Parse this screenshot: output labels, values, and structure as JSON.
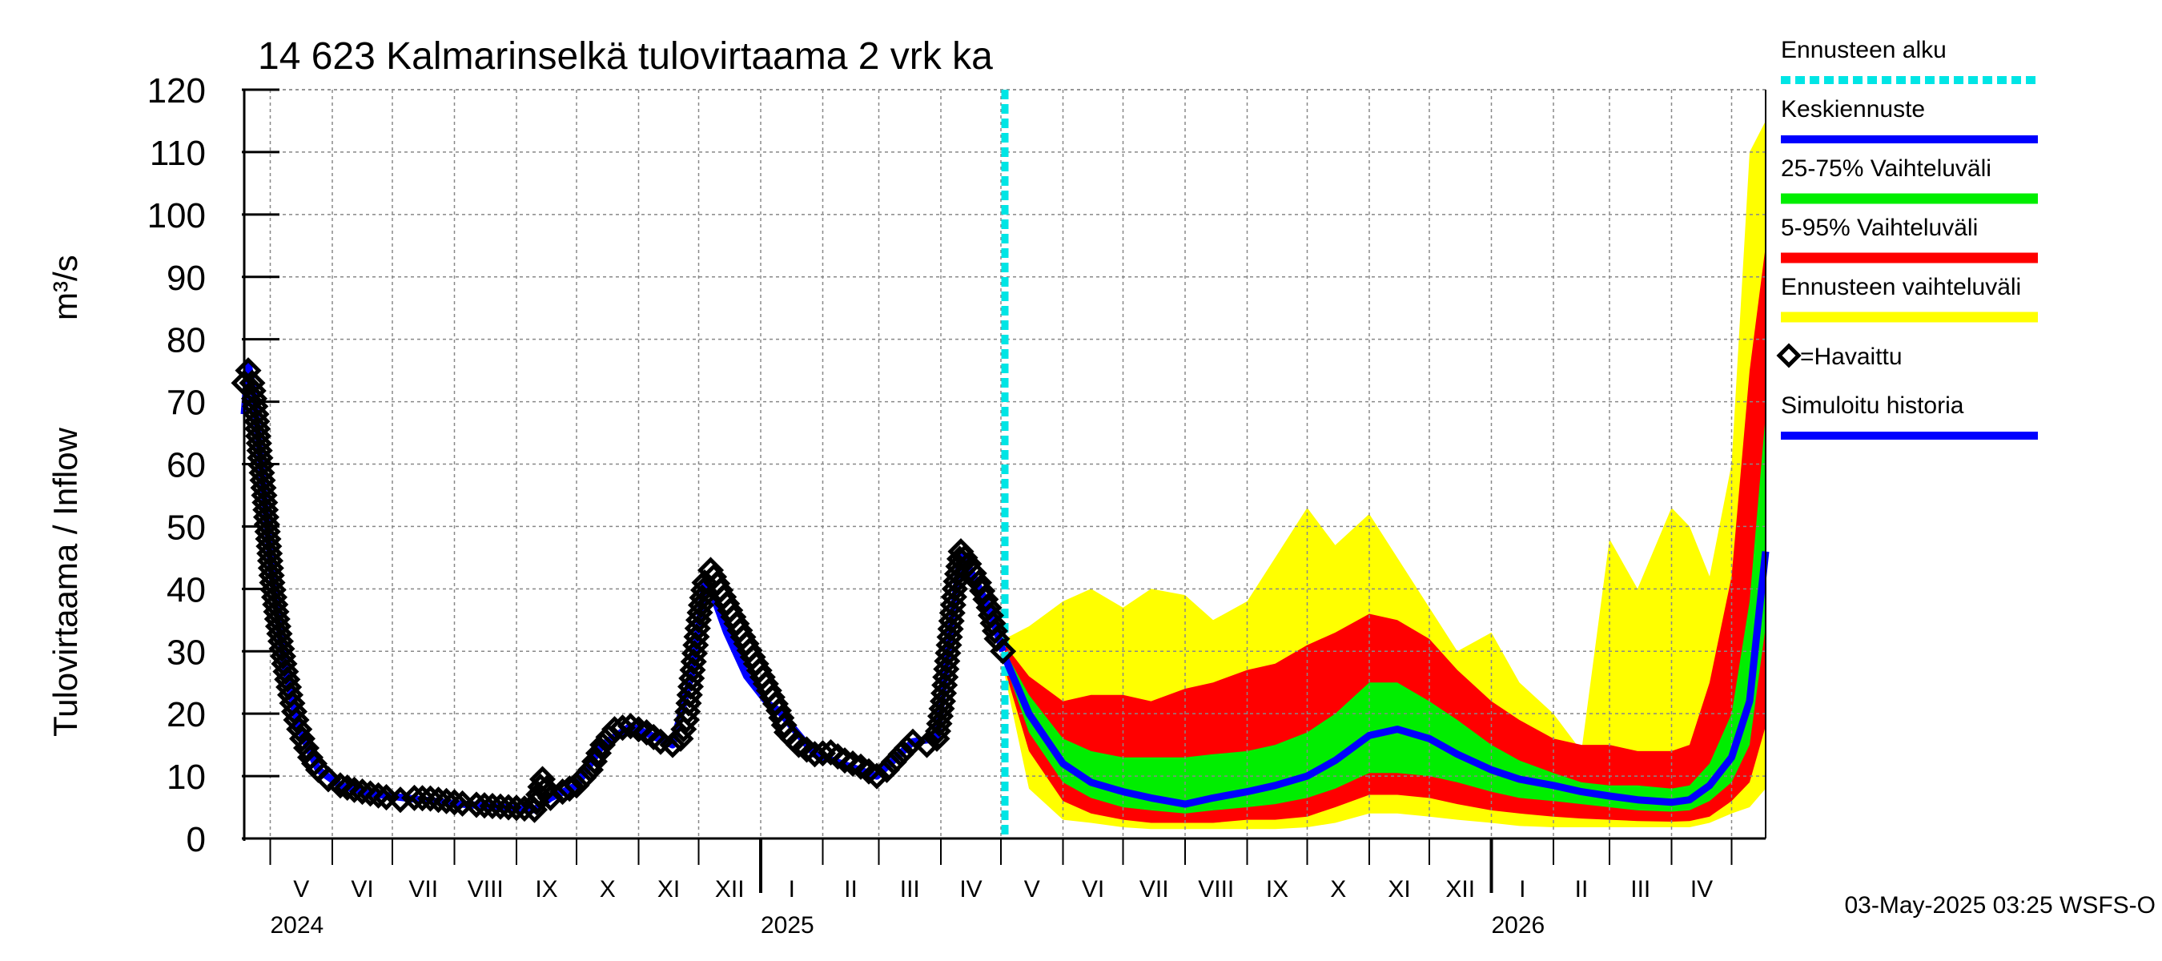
{
  "chart_data": {
    "type": "line",
    "title": "14 623 Kalmarinselkä tulovirtaama 2 vrk ka",
    "ylabel_left": "Tulovirtaama / Inflow",
    "ylabel_unit": "m³/s",
    "ylim": [
      0,
      120
    ],
    "yticks": [
      0,
      10,
      20,
      30,
      40,
      50,
      60,
      70,
      80,
      90,
      100,
      110,
      120
    ],
    "x_range": [
      "2024-04-18",
      "2026-05-18"
    ],
    "grid": true,
    "legend_position": "right",
    "forecast_start": "2025-05-03",
    "months": [
      {
        "label": "V",
        "start": "2024-05-01"
      },
      {
        "label": "VI",
        "start": "2024-06-01"
      },
      {
        "label": "VII",
        "start": "2024-07-01"
      },
      {
        "label": "VIII",
        "start": "2024-08-01"
      },
      {
        "label": "IX",
        "start": "2024-09-01"
      },
      {
        "label": "X",
        "start": "2024-10-01"
      },
      {
        "label": "XI",
        "start": "2024-11-01"
      },
      {
        "label": "XII",
        "start": "2024-12-01"
      },
      {
        "label": "I",
        "start": "2025-01-01"
      },
      {
        "label": "II",
        "start": "2025-02-01"
      },
      {
        "label": "III",
        "start": "2025-03-01"
      },
      {
        "label": "IV",
        "start": "2025-04-01"
      },
      {
        "label": "V",
        "start": "2025-05-01"
      },
      {
        "label": "VI",
        "start": "2025-06-01"
      },
      {
        "label": "VII",
        "start": "2025-07-01"
      },
      {
        "label": "VIII",
        "start": "2025-08-01"
      },
      {
        "label": "IX",
        "start": "2025-09-01"
      },
      {
        "label": "X",
        "start": "2025-10-01"
      },
      {
        "label": "XI",
        "start": "2025-11-01"
      },
      {
        "label": "XII",
        "start": "2025-12-01"
      },
      {
        "label": "I",
        "start": "2026-01-01"
      },
      {
        "label": "II",
        "start": "2026-02-01"
      },
      {
        "label": "III",
        "start": "2026-03-01"
      },
      {
        "label": "IV",
        "start": "2026-04-01"
      },
      {
        "label": "",
        "start": "2026-05-01"
      }
    ],
    "years": [
      {
        "label": "2024",
        "date": "2024-05-01"
      },
      {
        "label": "2025",
        "date": "2025-01-01"
      },
      {
        "label": "2026",
        "date": "2026-01-01"
      }
    ],
    "observed": {
      "name": "Havaittu",
      "points": [
        [
          "2024-04-18",
          73
        ],
        [
          "2024-04-20",
          75
        ],
        [
          "2024-04-22",
          73
        ],
        [
          "2024-04-24",
          68
        ],
        [
          "2024-04-26",
          61
        ],
        [
          "2024-04-28",
          55
        ],
        [
          "2024-04-30",
          48
        ],
        [
          "2024-05-02",
          41
        ],
        [
          "2024-05-05",
          34
        ],
        [
          "2024-05-08",
          28
        ],
        [
          "2024-05-11",
          23
        ],
        [
          "2024-05-14",
          19
        ],
        [
          "2024-05-17",
          16
        ],
        [
          "2024-05-21",
          13
        ],
        [
          "2024-05-25",
          11
        ],
        [
          "2024-05-30",
          9.5
        ],
        [
          "2024-06-05",
          8.5
        ],
        [
          "2024-06-12",
          7.8
        ],
        [
          "2024-06-20",
          7.2
        ],
        [
          "2024-06-28",
          6.6
        ],
        [
          "2024-07-05",
          6.2
        ],
        [
          "2024-07-12",
          6.5
        ],
        [
          "2024-07-20",
          6.4
        ],
        [
          "2024-07-28",
          6.0
        ],
        [
          "2024-08-05",
          5.6
        ],
        [
          "2024-08-12",
          5.4
        ],
        [
          "2024-08-20",
          5.2
        ],
        [
          "2024-08-28",
          5.0
        ],
        [
          "2024-09-05",
          4.8
        ],
        [
          "2024-09-10",
          4.6
        ],
        [
          "2024-09-14",
          9.5
        ],
        [
          "2024-09-18",
          6.5
        ],
        [
          "2024-09-24",
          7.5
        ],
        [
          "2024-10-01",
          8.5
        ],
        [
          "2024-10-08",
          11
        ],
        [
          "2024-10-14",
          15
        ],
        [
          "2024-10-20",
          17.5
        ],
        [
          "2024-10-28",
          18
        ],
        [
          "2024-11-05",
          17
        ],
        [
          "2024-11-12",
          15.5
        ],
        [
          "2024-11-18",
          15
        ],
        [
          "2024-11-22",
          16
        ],
        [
          "2024-11-25",
          19
        ],
        [
          "2024-11-28",
          27
        ],
        [
          "2024-12-01",
          35
        ],
        [
          "2024-12-04",
          41
        ],
        [
          "2024-12-07",
          43
        ],
        [
          "2025-01-10",
          20.5
        ],
        [
          "2025-01-14",
          17
        ],
        [
          "2025-01-20",
          15
        ],
        [
          "2025-01-28",
          13.5
        ],
        [
          "2025-02-05",
          13.8
        ],
        [
          "2025-02-12",
          12.5
        ],
        [
          "2025-02-20",
          11.5
        ],
        [
          "2025-02-28",
          10
        ],
        [
          "2025-03-05",
          11
        ],
        [
          "2025-03-12",
          13.5
        ],
        [
          "2025-03-18",
          15.5
        ],
        [
          "2025-03-25",
          15
        ],
        [
          "2025-03-30",
          16
        ],
        [
          "2025-04-02",
          22
        ],
        [
          "2025-04-05",
          31
        ],
        [
          "2025-04-08",
          40
        ],
        [
          "2025-04-11",
          46
        ],
        [
          "2025-04-15",
          44
        ],
        [
          "2025-04-20",
          41
        ],
        [
          "2025-04-25",
          37
        ],
        [
          "2025-04-29",
          32
        ],
        [
          "2025-05-02",
          30
        ]
      ]
    },
    "simulated_history": {
      "name": "Simuloitu historia",
      "color": "#0000ff",
      "points": [
        [
          "2024-04-18",
          68
        ],
        [
          "2024-04-20",
          76
        ],
        [
          "2024-04-23",
          71
        ],
        [
          "2024-04-27",
          58
        ],
        [
          "2024-05-02",
          42
        ],
        [
          "2024-05-08",
          28
        ],
        [
          "2024-05-15",
          18
        ],
        [
          "2024-05-25",
          11
        ],
        [
          "2024-06-05",
          8.5
        ],
        [
          "2024-06-20",
          7.2
        ],
        [
          "2024-07-10",
          6.4
        ],
        [
          "2024-08-01",
          5.6
        ],
        [
          "2024-08-25",
          5.0
        ],
        [
          "2024-09-10",
          4.6
        ],
        [
          "2024-09-18",
          6.5
        ],
        [
          "2024-10-01",
          8.5
        ],
        [
          "2024-10-14",
          15
        ],
        [
          "2024-10-28",
          18
        ],
        [
          "2024-11-18",
          15
        ],
        [
          "2024-11-28",
          27
        ],
        [
          "2024-12-04",
          41
        ],
        [
          "2024-12-07",
          40
        ],
        [
          "2024-12-15",
          33
        ],
        [
          "2024-12-25",
          26
        ],
        [
          "2025-01-05",
          21.5
        ],
        [
          "2025-01-10",
          20.5
        ],
        [
          "2025-01-28",
          13.5
        ],
        [
          "2025-02-28",
          10
        ],
        [
          "2025-03-18",
          15.5
        ],
        [
          "2025-03-30",
          16
        ],
        [
          "2025-04-05",
          31
        ],
        [
          "2025-04-11",
          46
        ],
        [
          "2025-04-25",
          37
        ],
        [
          "2025-05-02",
          30
        ]
      ]
    },
    "forecast": {
      "dates": [
        "2025-05-03",
        "2025-05-15",
        "2025-06-01",
        "2025-06-15",
        "2025-07-01",
        "2025-07-15",
        "2025-08-01",
        "2025-08-15",
        "2025-09-01",
        "2025-09-15",
        "2025-10-01",
        "2025-10-15",
        "2025-11-01",
        "2025-11-15",
        "2025-12-01",
        "2025-12-15",
        "2026-01-01",
        "2026-01-15",
        "2026-02-01",
        "2026-02-15",
        "2026-03-01",
        "2026-03-15",
        "2026-04-01",
        "2026-04-10",
        "2026-04-20",
        "2026-05-01",
        "2026-05-10",
        "2026-05-18"
      ],
      "median": {
        "name": "Keskiennuste",
        "color": "#0000ff",
        "values": [
          29,
          20,
          12,
          9,
          7.5,
          6.5,
          5.5,
          6.5,
          7.5,
          8.5,
          10,
          12.5,
          16.5,
          17.5,
          16,
          13.5,
          11,
          9.5,
          8.5,
          7.5,
          6.8,
          6.2,
          5.8,
          6.2,
          8.5,
          13,
          22,
          46
        ]
      },
      "p25_75": {
        "name": "25-75% Vaihteluväli",
        "color": "#00ee00",
        "lower": [
          28,
          17,
          9,
          6.5,
          5,
          4.5,
          4,
          4.5,
          5,
          5.5,
          6.5,
          8,
          10.5,
          10.5,
          10,
          9,
          7.5,
          6.5,
          6,
          5.5,
          5,
          4.5,
          4.3,
          4.5,
          6,
          9,
          15,
          34
        ],
        "upper": [
          30,
          23,
          16,
          14,
          13,
          13,
          13,
          13.5,
          14,
          15,
          17,
          20,
          25,
          25,
          22,
          19,
          15,
          12.5,
          10.5,
          9,
          8.5,
          8.5,
          8,
          8.5,
          12,
          20,
          38,
          68
        ]
      },
      "p5_95": {
        "name": "5-95% Vaihteluväli",
        "color": "#ff0000",
        "lower": [
          27,
          14,
          6,
          4,
          3,
          2.5,
          2.5,
          2.5,
          3,
          3,
          3.5,
          5,
          7,
          7,
          6.5,
          5.5,
          4.5,
          4,
          3.5,
          3.2,
          3,
          2.8,
          2.7,
          2.8,
          3.5,
          6,
          9,
          18
        ],
        "upper": [
          31,
          26,
          22,
          23,
          23,
          22,
          24,
          25,
          27,
          28,
          31,
          33,
          36,
          35,
          32,
          27,
          22,
          19,
          16,
          15,
          15,
          14,
          14,
          15,
          25,
          42,
          75,
          95
        ]
      },
      "range": {
        "name": "Ennusteen vaihteluväli",
        "color": "#ffff00",
        "lower": [
          26,
          8,
          3,
          2.5,
          1.8,
          1.5,
          1.5,
          1.5,
          1.5,
          1.5,
          1.8,
          2.5,
          4,
          4,
          3.5,
          3,
          2.5,
          2,
          1.8,
          1.8,
          1.8,
          1.8,
          1.8,
          1.8,
          2.5,
          4,
          5,
          8
        ],
        "upper": [
          32,
          34,
          38,
          40,
          37,
          40,
          39,
          35,
          38,
          45,
          53,
          47,
          52,
          45,
          37,
          30,
          33,
          25,
          20,
          14,
          48,
          40,
          53,
          50,
          42,
          60,
          110,
          115
        ]
      }
    },
    "legend": [
      {
        "label": "Ennusteen alku",
        "style": "dashed",
        "color": "#00e5e5"
      },
      {
        "label": "Keskiennuste",
        "style": "line",
        "color": "#0000ff"
      },
      {
        "label": "25-75% Vaihteluväli",
        "style": "band",
        "color": "#00ee00"
      },
      {
        "label": "5-95% Vaihteluväli",
        "style": "band",
        "color": "#ff0000"
      },
      {
        "label": "Ennusteen vaihteluväli",
        "style": "band",
        "color": "#ffff00"
      },
      {
        "label": "=Havaittu",
        "style": "marker",
        "color": "#000000"
      },
      {
        "label": "Simuloitu historia",
        "style": "line",
        "color": "#0000ff"
      }
    ],
    "footer": "03-May-2025 03:25 WSFS-O"
  }
}
